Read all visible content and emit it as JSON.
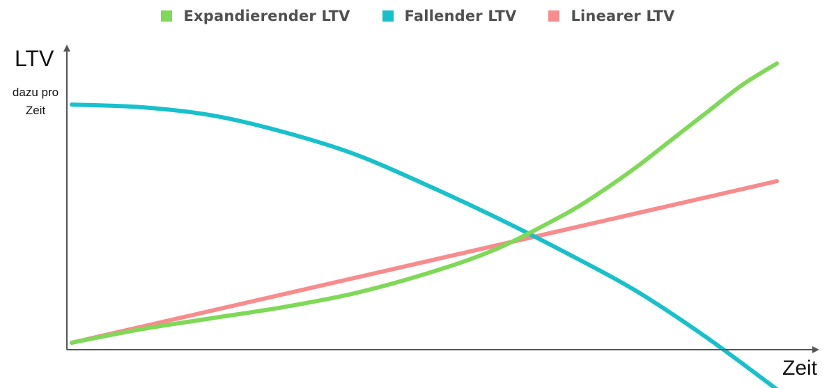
{
  "legend": {
    "items": [
      {
        "label": "Expandierender LTV",
        "color": "#7ed957"
      },
      {
        "label": "Fallender LTV",
        "color": "#17c1cc"
      },
      {
        "label": "Linearer LTV",
        "color": "#f78c8c"
      }
    ]
  },
  "axes": {
    "y_title": "LTV",
    "y_subtitle": "dazu pro Zeit",
    "x_title": "Zeit",
    "axis_color": "#555555"
  },
  "chart_data": {
    "type": "line",
    "title": "",
    "xlabel": "Zeit",
    "ylabel": "LTV",
    "xlim": [
      0,
      10
    ],
    "ylim": [
      0,
      10
    ],
    "grid": false,
    "legend_position": "top",
    "series": [
      {
        "name": "Expandierender LTV",
        "color": "#7ed957",
        "x": [
          0,
          1,
          2,
          3,
          4,
          5,
          6,
          7,
          7.5,
          8,
          8.5,
          9,
          9.5,
          10
        ],
        "y": [
          0,
          0.5,
          0.9,
          1.3,
          1.8,
          2.5,
          3.4,
          4.7,
          5.5,
          6.4,
          7.4,
          8.4,
          9.4,
          10.2
        ]
      },
      {
        "name": "Fallender LTV",
        "color": "#17c1cc",
        "x": [
          0,
          1,
          2,
          3,
          4,
          5,
          6,
          7,
          8,
          9,
          10
        ],
        "y": [
          8.7,
          8.6,
          8.3,
          7.7,
          6.9,
          5.8,
          4.6,
          3.3,
          1.9,
          0.2,
          -1.7
        ]
      },
      {
        "name": "Linearer LTV",
        "color": "#f78c8c",
        "x": [
          0,
          10
        ],
        "y": [
          0,
          5.9
        ]
      }
    ]
  }
}
